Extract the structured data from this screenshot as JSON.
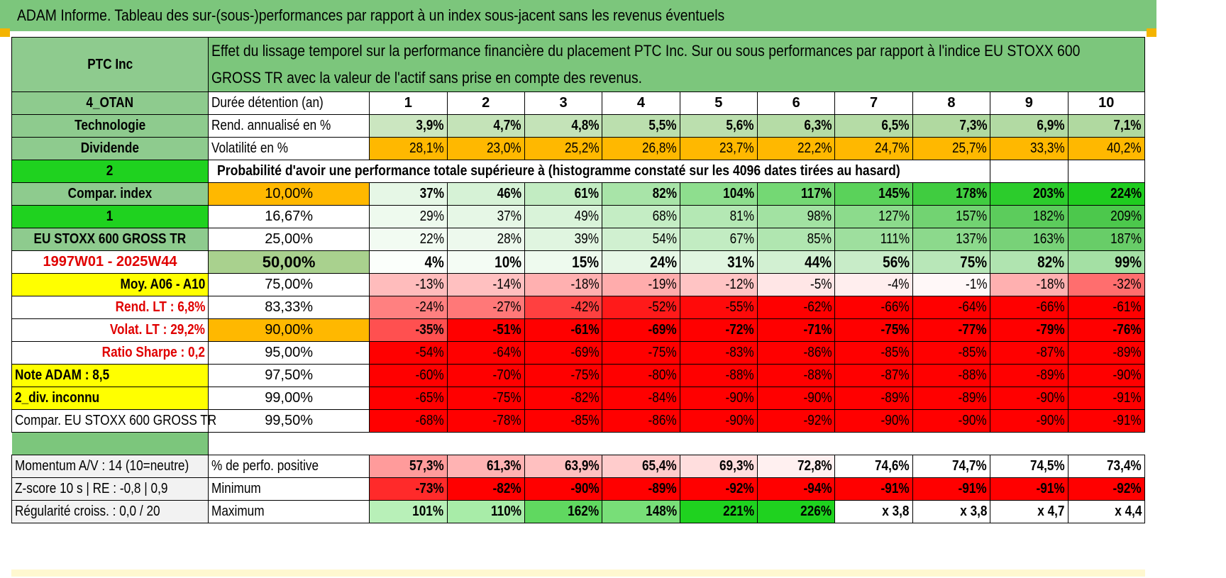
{
  "title": "ADAM Informe. Tableau des sur-(sous-)performances par rapport à un index sous-jacent sans les revenus éventuels",
  "header": {
    "company": "PTC Inc",
    "description": "Effet du lissage temporel sur la performance financière du placement PTC Inc. Sur ou sous performances par rapport à l'indice EU STOXX 600 GROSS TR avec la valeur de l'actif sans prise en compte des revenus."
  },
  "side": {
    "code": "4_OTAN",
    "sector": "Technologie",
    "dividend": "Dividende",
    "n2": "2",
    "compar": "Compar. index",
    "n1": "1",
    "index_name": "EU STOXX 600 GROSS TR",
    "period": "1997W01 - 2025W44",
    "moy": "Moy. A06 - A10",
    "rend_lt": "Rend. LT :    6,8%",
    "volat_lt": "Volat. LT :    29,2%",
    "sharpe": "Ratio Sharpe :    0,2",
    "note": "Note ADAM : 8,5",
    "div": "2_div. inconnu",
    "compar2": "Compar. EU STOXX 600 GROSS TR"
  },
  "rows": {
    "years_label": "Durée détention (an)",
    "years": [
      "1",
      "2",
      "3",
      "4",
      "5",
      "6",
      "7",
      "8",
      "9",
      "10"
    ],
    "rend_label": "Rend. annualisé en %",
    "rend": [
      "3,9%",
      "4,7%",
      "4,8%",
      "5,5%",
      "5,6%",
      "6,3%",
      "6,5%",
      "7,3%",
      "6,9%",
      "7,1%"
    ],
    "vol_label": "Volatilité en %",
    "vol": [
      "28,1%",
      "23,0%",
      "25,2%",
      "26,8%",
      "23,7%",
      "22,2%",
      "24,7%",
      "25,7%",
      "33,3%",
      "40,2%"
    ],
    "prob_title": "Probabilité d'avoir une performance totale supérieure à (histogramme constaté sur les 4096 dates tirées au hasard)"
  },
  "quantiles": [
    {
      "p": "10,00%",
      "v": [
        "37%",
        "46%",
        "61%",
        "82%",
        "104%",
        "117%",
        "145%",
        "178%",
        "203%",
        "224%"
      ]
    },
    {
      "p": "16,67%",
      "v": [
        "29%",
        "37%",
        "49%",
        "68%",
        "81%",
        "98%",
        "127%",
        "157%",
        "182%",
        "209%"
      ]
    },
    {
      "p": "25,00%",
      "v": [
        "22%",
        "28%",
        "39%",
        "54%",
        "67%",
        "85%",
        "111%",
        "137%",
        "163%",
        "187%"
      ]
    },
    {
      "p": "50,00%",
      "v": [
        "4%",
        "10%",
        "15%",
        "24%",
        "31%",
        "44%",
        "56%",
        "75%",
        "82%",
        "99%"
      ]
    },
    {
      "p": "75,00%",
      "v": [
        "-13%",
        "-14%",
        "-18%",
        "-19%",
        "-12%",
        "-5%",
        "-4%",
        "-1%",
        "-18%",
        "-32%"
      ]
    },
    {
      "p": "83,33%",
      "v": [
        "-24%",
        "-27%",
        "-42%",
        "-52%",
        "-55%",
        "-62%",
        "-66%",
        "-64%",
        "-66%",
        "-61%"
      ]
    },
    {
      "p": "90,00%",
      "v": [
        "-35%",
        "-51%",
        "-61%",
        "-69%",
        "-72%",
        "-71%",
        "-75%",
        "-77%",
        "-79%",
        "-76%"
      ]
    },
    {
      "p": "95,00%",
      "v": [
        "-54%",
        "-64%",
        "-69%",
        "-75%",
        "-83%",
        "-86%",
        "-85%",
        "-85%",
        "-87%",
        "-89%"
      ]
    },
    {
      "p": "97,50%",
      "v": [
        "-60%",
        "-70%",
        "-75%",
        "-80%",
        "-88%",
        "-88%",
        "-87%",
        "-88%",
        "-89%",
        "-90%"
      ]
    },
    {
      "p": "99,00%",
      "v": [
        "-65%",
        "-75%",
        "-82%",
        "-84%",
        "-90%",
        "-90%",
        "-89%",
        "-89%",
        "-90%",
        "-91%"
      ]
    },
    {
      "p": "99,50%",
      "v": [
        "-68%",
        "-78%",
        "-85%",
        "-86%",
        "-90%",
        "-92%",
        "-90%",
        "-90%",
        "-90%",
        "-91%"
      ]
    }
  ],
  "stats": [
    {
      "side": "Momentum A/V : 14 (10=neutre)",
      "label": "% de perfo. positive",
      "v": [
        "57,3%",
        "61,3%",
        "63,9%",
        "65,4%",
        "69,3%",
        "72,8%",
        "74,6%",
        "74,7%",
        "74,5%",
        "73,4%"
      ]
    },
    {
      "side": "Z-score 10 s | RE : -0,8 | 0,9",
      "label": "Minimum",
      "v": [
        "-73%",
        "-82%",
        "-90%",
        "-89%",
        "-92%",
        "-94%",
        "-91%",
        "-91%",
        "-91%",
        "-92%"
      ]
    },
    {
      "side": "Régularité croiss. : 0,0 / 20",
      "label": "Maximum",
      "v": [
        "101%",
        "110%",
        "162%",
        "148%",
        "221%",
        "226%",
        "x 3,8",
        "x 3,8",
        "x 4,7",
        "x 4,4"
      ]
    }
  ],
  "colors": {
    "quantiles": [
      [
        "#e6f7e6",
        "#d6f2d6",
        "#c2ecc2",
        "#a8e4a8",
        "#8ede8e",
        "#74d874",
        "#5ad25a",
        "#40cc40",
        "#2ccc2c",
        "#1fcc1f"
      ],
      [
        "#eefaee",
        "#e6f7e6",
        "#d9f3d9",
        "#c4edc4",
        "#b4e8b4",
        "#a2e2a2",
        "#8cdb8c",
        "#72d372",
        "#5ccc5c",
        "#4cc84c"
      ],
      [
        "#f2fbf2",
        "#edf9ed",
        "#e0f5e0",
        "#d0f0d0",
        "#c2ecc2",
        "#b0e6b0",
        "#9edf9e",
        "#8cd98c",
        "#78d278",
        "#68cd68"
      ],
      [
        "#fbfffb",
        "#f4fcf4",
        "#eefaee",
        "#e6f7e6",
        "#e0f5e0",
        "#d2f0d2",
        "#c8ecc8",
        "#b8e7b8",
        "#b0e4b0",
        "#a4e0a4"
      ],
      [
        "#ffbcbc",
        "#ffc0c0",
        "#ffb0b0",
        "#ffacac",
        "#ffc4c4",
        "#ffe6e6",
        "#ffeeee",
        "#fff8f8",
        "#ffb0b0",
        "#ff6e6e"
      ],
      [
        "#ff8080",
        "#ff7878",
        "#ff4040",
        "#ff1a1a",
        "#ff0a0a",
        "#ff0000",
        "#ff0000",
        "#ff0000",
        "#ff0000",
        "#ff0000"
      ],
      [
        "#ff5050",
        "#ff0000",
        "#ff0000",
        "#ff0000",
        "#ff0000",
        "#ff0000",
        "#ff0000",
        "#ff0000",
        "#ff0000",
        "#ff0000"
      ],
      [
        "#ff0000",
        "#ff0000",
        "#ff0000",
        "#ff0000",
        "#ff0000",
        "#ff0000",
        "#ff0000",
        "#ff0000",
        "#ff0000",
        "#ff0000"
      ],
      [
        "#ff0000",
        "#ff0000",
        "#ff0000",
        "#ff0000",
        "#ff0000",
        "#ff0000",
        "#ff0000",
        "#ff0000",
        "#ff0000",
        "#ff0000"
      ],
      [
        "#ff0000",
        "#ff0000",
        "#ff0000",
        "#ff0000",
        "#ff0000",
        "#ff0000",
        "#ff0000",
        "#ff0000",
        "#ff0000",
        "#ff0000"
      ],
      [
        "#ff0000",
        "#ff0000",
        "#ff0000",
        "#ff0000",
        "#ff0000",
        "#ff0000",
        "#ff0000",
        "#ff0000",
        "#ff0000",
        "#ff0000"
      ]
    ],
    "rend": [
      "#cbe6c0",
      "#c4e3b8",
      "#c4e3b8",
      "#bbdfae",
      "#bbdfae",
      "#b5dca6",
      "#b5dca6",
      "#b0d9a0",
      "#b2daa3",
      "#b0d9a0"
    ],
    "vol": "#ffb800",
    "pos": [
      "#ff9b9b",
      "#ffb3b3",
      "#ffc0c0",
      "#ffcccc",
      "#ffdede",
      "#fff0f0",
      "#ffffff",
      "#ffffff",
      "#ffffff",
      "#ffffff"
    ],
    "min": [
      "#ff2a2a",
      "#ff0000",
      "#ff0000",
      "#ff0000",
      "#ff0000",
      "#ff0000",
      "#ff0000",
      "#ff0000",
      "#ff0000",
      "#ff0000"
    ],
    "max": [
      "#b8f0b8",
      "#a8eca8",
      "#60d860",
      "#78de78",
      "#1fd21f",
      "#1fd21f",
      "#ffffff",
      "#ffffff",
      "#ffffff",
      "#ffffff"
    ]
  }
}
